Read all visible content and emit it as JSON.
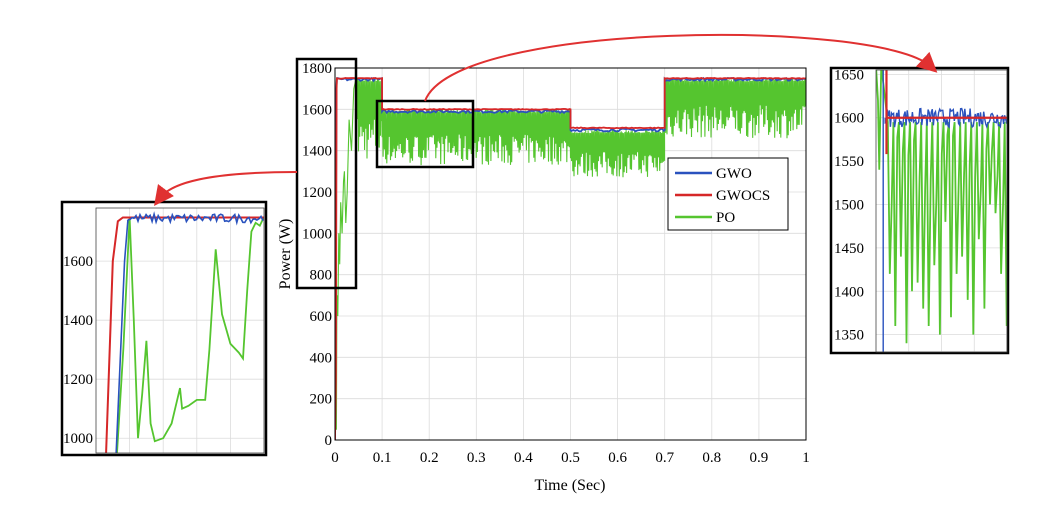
{
  "chart_data": [
    {
      "id": "main",
      "type": "line",
      "xlabel": "Time (Sec)",
      "ylabel": "Power (W)",
      "xlim": [
        0,
        1
      ],
      "ylim": [
        0,
        1800
      ],
      "xticks": [
        0,
        0.1,
        0.2,
        0.3,
        0.4,
        0.5,
        0.6,
        0.7,
        0.8,
        0.9,
        1
      ],
      "xtick_labels": [
        "0",
        "0.1",
        "0.2",
        "0.3",
        "0.4",
        "0.5",
        "0.6",
        "0.7",
        "0.8",
        "0.9",
        "1"
      ],
      "yticks": [
        0,
        200,
        400,
        600,
        800,
        1000,
        1200,
        1400,
        1600,
        1800
      ],
      "ytick_labels": [
        "0",
        "200",
        "400",
        "600",
        "800",
        "1000",
        "1200",
        "1400",
        "1600",
        "1800"
      ],
      "grid": true,
      "legend_position": "right",
      "series": [
        {
          "name": "GWO",
          "color": "#2a52be",
          "segments": [
            {
              "t0": 0.0,
              "t1": 0.1,
              "mean": 1745
            },
            {
              "t0": 0.1,
              "t1": 0.5,
              "mean": 1590
            },
            {
              "t0": 0.5,
              "t1": 0.7,
              "mean": 1500
            },
            {
              "t0": 0.7,
              "t1": 1.0,
              "mean": 1745
            }
          ]
        },
        {
          "name": "GWOCS",
          "color": "#d62728",
          "segments": [
            {
              "t0": 0.0,
              "t1": 0.1,
              "mean": 1750
            },
            {
              "t0": 0.1,
              "t1": 0.5,
              "mean": 1600
            },
            {
              "t0": 0.5,
              "t1": 0.7,
              "mean": 1510
            },
            {
              "t0": 0.7,
              "t1": 1.0,
              "mean": 1750
            }
          ]
        },
        {
          "name": "PO",
          "color": "#55c52f",
          "segments": [
            {
              "t0": 0.0,
              "t1": 0.1,
              "max": 1750,
              "min": 1350
            },
            {
              "t0": 0.1,
              "t1": 0.5,
              "max": 1600,
              "min": 1330
            },
            {
              "t0": 0.5,
              "t1": 0.7,
              "max": 1500,
              "min": 1270
            },
            {
              "t0": 0.7,
              "t1": 1.0,
              "max": 1750,
              "min": 1460
            }
          ]
        }
      ]
    },
    {
      "id": "zoom-left",
      "type": "line",
      "xlim": [
        0,
        0.05
      ],
      "ylim": [
        950,
        1780
      ],
      "yticks": [
        1000,
        1200,
        1400,
        1600
      ],
      "ytick_labels": [
        "1000",
        "1200",
        "1400",
        "1600"
      ],
      "grid": true
    },
    {
      "id": "zoom-right",
      "type": "line",
      "xlim": [
        0.1,
        0.3
      ],
      "ylim": [
        1330,
        1655
      ],
      "yticks": [
        1350,
        1400,
        1450,
        1500,
        1550,
        1600,
        1650
      ],
      "ytick_labels": [
        "1350",
        "1400",
        "1450",
        "1500",
        "1550",
        "1600",
        "1650"
      ],
      "grid": true
    }
  ]
}
